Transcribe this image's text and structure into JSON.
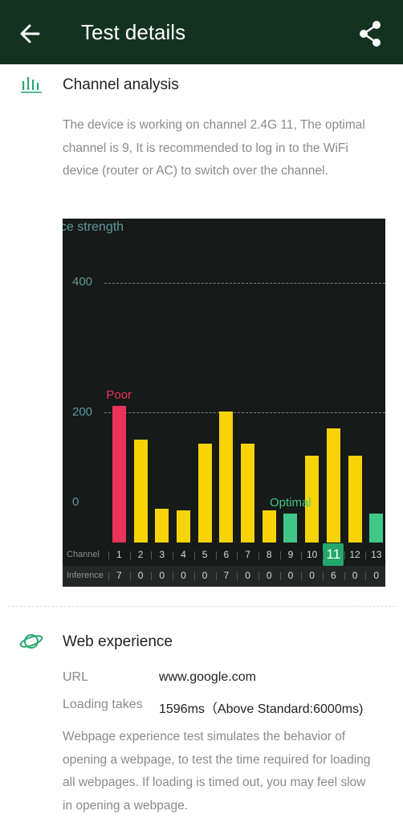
{
  "header": {
    "title": "Test details"
  },
  "channel_analysis": {
    "title": "Channel analysis",
    "description": "The device is working on channel 2.4G 11, The optimal channel is 9, It is recommended to log in to the WiFi device (router or AC) to switch over the channel."
  },
  "chart_data": {
    "type": "bar",
    "ylabel": "nce strength",
    "yticks": [
      "400",
      "200"
    ],
    "ylim": [
      0,
      400
    ],
    "categories": [
      "1",
      "2",
      "3",
      "4",
      "5",
      "6",
      "7",
      "8",
      "9",
      "10",
      "11",
      "12",
      "13"
    ],
    "values": [
      210,
      158,
      52,
      50,
      152,
      202,
      152,
      50,
      44,
      134,
      176,
      134,
      44
    ],
    "bar_colors": [
      "#e8335a",
      "#f7d308",
      "#f7d308",
      "#f7d308",
      "#f7d308",
      "#f7d308",
      "#f7d308",
      "#f7d308",
      "#3fc788",
      "#f7d308",
      "#f7d308",
      "#f7d308",
      "#3fc788"
    ],
    "bar_labels": [
      {
        "channel": "1",
        "text": "Poor",
        "color": "#e8335a"
      },
      {
        "channel": "9",
        "text": "Optimal",
        "color": "#3fc788"
      }
    ],
    "current_channel": "11",
    "row_channel_label": "Channel",
    "row_inference_label": "Inference",
    "inference": [
      "7",
      "0",
      "0",
      "0",
      "0",
      "7",
      "0",
      "0",
      "0",
      "0",
      "6",
      "0",
      "0"
    ]
  },
  "web_experience": {
    "title": "Web experience",
    "url_label": "URL",
    "url_value": "www.google.com",
    "loading_label": "Loading takes",
    "loading_value": "1596ms（Above Standard:6000ms)",
    "description": "Webpage experience test simulates the behavior of opening a webpage, to test the time required for loading all webpages. If loading is timed out, you may feel slow in opening a webpage."
  }
}
